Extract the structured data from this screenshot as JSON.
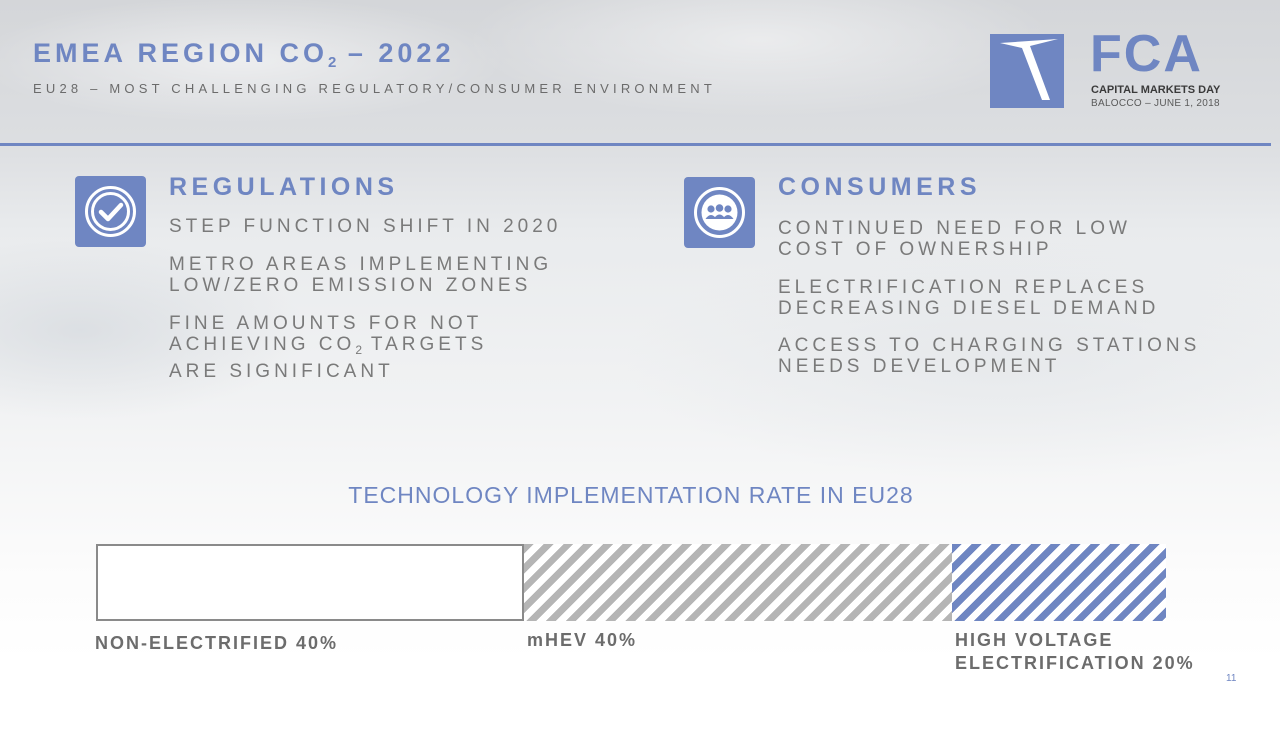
{
  "header": {
    "title_prefix": "EMEA REGION CO",
    "title_sub": "2",
    "title_suffix": " – 2022",
    "subtitle": "EU28 – MOST CHALLENGING REGULATORY/CONSUMER ENVIRONMENT"
  },
  "logo": {
    "wordmark": "FCA",
    "event": "CAPITAL MARKETS DAY",
    "place_date": "BALOCCO – JUNE 1, 2018"
  },
  "regulations": {
    "icon": "check-circle-icon",
    "title": "REGULATIONS",
    "bullets": {
      "b1": "STEP FUNCTION SHIFT IN 2020",
      "b2_l1": "METRO AREAS IMPLEMENTING",
      "b2_l2": "LOW/ZERO EMISSION ZONES",
      "b3_l1": "FINE AMOUNTS FOR NOT",
      "b3_l2a": "ACHIEVING CO",
      "b3_l2sub": "2",
      "b3_l2b": " TARGETS",
      "b3_l3": "ARE SIGNIFICANT"
    }
  },
  "consumers": {
    "icon": "group-people-icon",
    "title": "CONSUMERS",
    "bullets": {
      "b1_l1": "CONTINUED NEED FOR LOW",
      "b1_l2": "COST OF OWNERSHIP",
      "b2_l1": "ELECTRIFICATION REPLACES",
      "b2_l2": "DECREASING DIESEL DEMAND",
      "b3_l1": "ACCESS TO CHARGING STATIONS",
      "b3_l2": "NEEDS DEVELOPMENT"
    }
  },
  "chart_data": {
    "type": "bar",
    "title": "TECHNOLOGY IMPLEMENTATION RATE IN EU28",
    "orientation": "horizontal-stacked",
    "segments": [
      {
        "label_l1": "NON-ELECTRIFIED 40%",
        "label_l2": "",
        "value": 40,
        "fill": "white"
      },
      {
        "label_l1": "mHEV 40%",
        "label_l2": "",
        "value": 40,
        "fill": "gray-hatch"
      },
      {
        "label_l1": "HIGH VOLTAGE",
        "label_l2": "ELECTRIFICATION 20%",
        "value": 20,
        "fill": "blue-hatch"
      }
    ],
    "total": 100
  },
  "footer": {
    "page_number": "11"
  },
  "colors": {
    "accent": "#6f86c2",
    "text_gray": "#7a7a7a",
    "hatch_gray": "#b5b5b5"
  }
}
